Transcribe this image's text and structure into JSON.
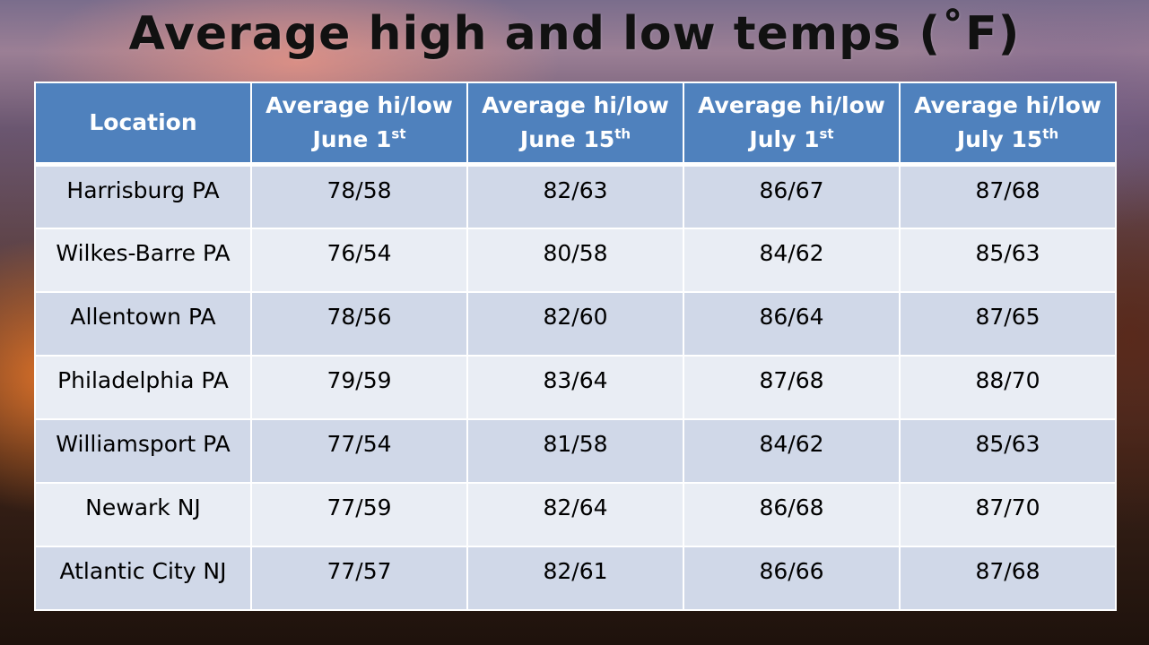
{
  "title": "Average high and low temps (˚F)",
  "table": {
    "headers": [
      {
        "line1": "Location",
        "line2": "",
        "sup": ""
      },
      {
        "line1": "Average hi/low",
        "line2": "June 1",
        "sup": "st"
      },
      {
        "line1": "Average hi/low",
        "line2": "June 15",
        "sup": "th"
      },
      {
        "line1": "Average hi/low",
        "line2": "July 1",
        "sup": "st"
      },
      {
        "line1": "Average hi/low",
        "line2": "July 15",
        "sup": "th"
      }
    ],
    "rows": [
      [
        "Harrisburg PA",
        "78/58",
        "82/63",
        "86/67",
        "87/68"
      ],
      [
        "Wilkes-Barre PA",
        "76/54",
        "80/58",
        "84/62",
        "85/63"
      ],
      [
        "Allentown PA",
        "78/56",
        "82/60",
        "86/64",
        "87/65"
      ],
      [
        "Philadelphia PA",
        "79/59",
        "83/64",
        "87/68",
        "88/70"
      ],
      [
        "Williamsport PA",
        "77/54",
        "81/58",
        "84/62",
        "85/63"
      ],
      [
        "Newark NJ",
        "77/59",
        "82/64",
        "86/68",
        "87/70"
      ],
      [
        "Atlantic City NJ",
        "77/57",
        "82/61",
        "86/66",
        "87/68"
      ]
    ]
  },
  "colors": {
    "header_bg": "#4f81bd",
    "row_odd_bg": "#d0d8e8",
    "row_even_bg": "#e9edf4"
  }
}
